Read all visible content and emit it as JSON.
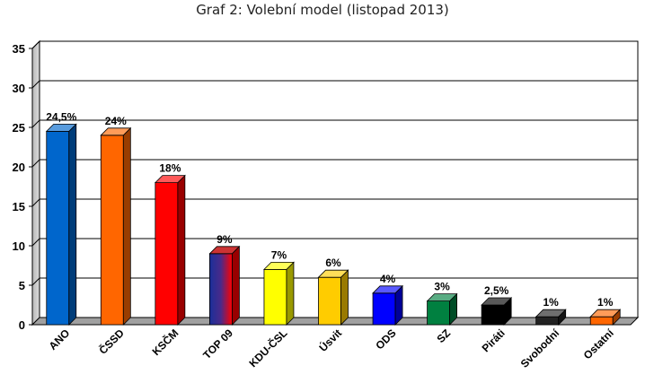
{
  "chart_data": {
    "type": "bar",
    "title": "Graf 2: Volební model (listopad 2013)",
    "xlabel": "",
    "ylabel": "",
    "ylim": [
      0,
      35
    ],
    "yticks": [
      "0",
      "5",
      "10",
      "15",
      "20",
      "25",
      "30",
      "35"
    ],
    "grid": true,
    "style": "3d",
    "categories": [
      "ANO",
      "ČSSD",
      "KSČM",
      "TOP 09",
      "KDU-ČSL",
      "Úsvit",
      "ODS",
      "SZ",
      "Piráti",
      "Svobodní",
      "Ostatní"
    ],
    "values": [
      24.5,
      24,
      18,
      9,
      7,
      6,
      4,
      3,
      2.5,
      1,
      1
    ],
    "data_labels": [
      "24,5%",
      "24%",
      "18%",
      "9%",
      "7%",
      "6%",
      "4%",
      "3%",
      "2,5%",
      "1%",
      "1%"
    ],
    "colors": [
      "#0066cc",
      "#ff6600",
      "#ff0000",
      "gradient:#1a2f99-#ff0000",
      "#ffff00",
      "#ffcc00",
      "#0000ff",
      "#008040",
      "#000000",
      "#222222",
      "#ff6600"
    ]
  }
}
